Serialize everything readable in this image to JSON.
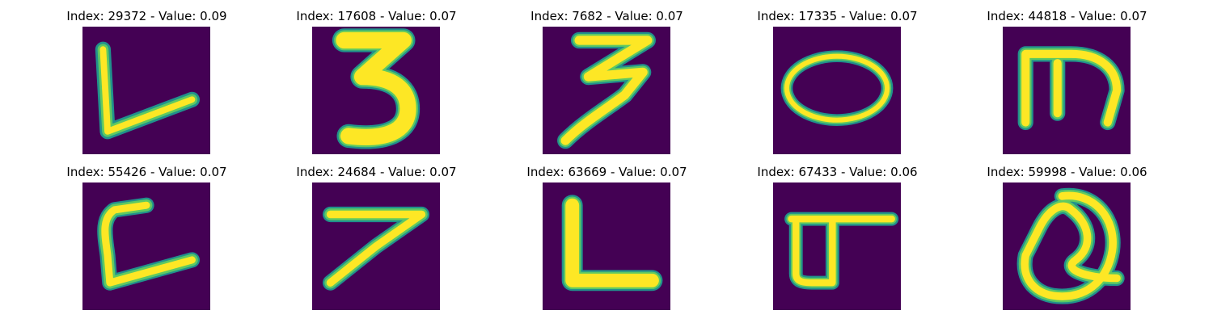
{
  "colors": {
    "background": "#440154",
    "stroke_edge": "#21918c",
    "stroke_mid": "#5ec962",
    "stroke_core": "#fde725"
  },
  "grid": {
    "rows": 2,
    "cols": 5,
    "items": [
      {
        "title": "Index: 29372 - Value: 0.09",
        "glyph": "L"
      },
      {
        "title": "Index: 17608 - Value: 0.07",
        "glyph": "3"
      },
      {
        "title": "Index: 7682 - Value: 0.07",
        "glyph": "3"
      },
      {
        "title": "Index: 17335 - Value: 0.07",
        "glyph": "O"
      },
      {
        "title": "Index: 44818 - Value: 0.07",
        "glyph": "m"
      },
      {
        "title": "Index: 55426 - Value: 0.07",
        "glyph": "C"
      },
      {
        "title": "Index: 24684 - Value: 0.07",
        "glyph": "7"
      },
      {
        "title": "Index: 63669 - Value: 0.07",
        "glyph": "L"
      },
      {
        "title": "Index: 67433 - Value: 0.06",
        "glyph": "d"
      },
      {
        "title": "Index: 59998 - Value: 0.06",
        "glyph": "Q"
      }
    ]
  }
}
